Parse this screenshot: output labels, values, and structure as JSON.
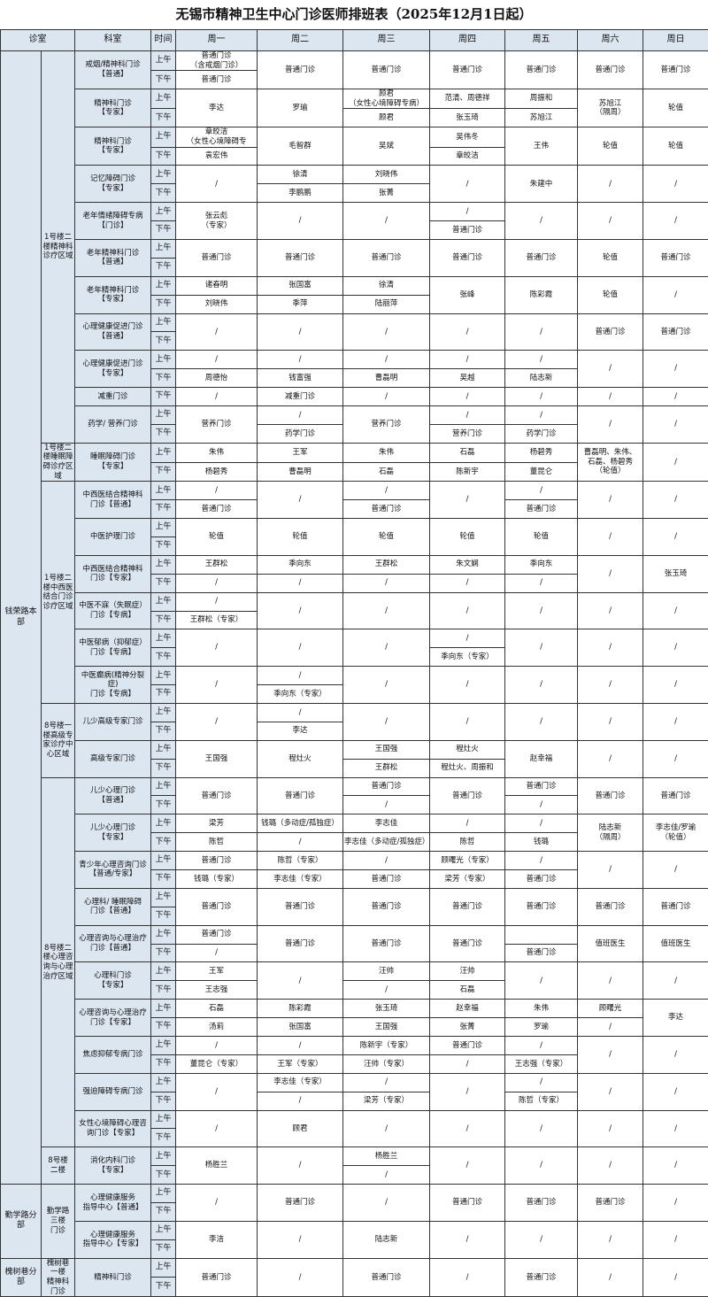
{
  "title": "无锡市精神卫生中心门诊医师排班表（2025年12月1日起）",
  "headers": {
    "clinic": "诊室",
    "dept": "科室",
    "time": "时间",
    "days": [
      "周一",
      "周二",
      "周三",
      "周四",
      "周五",
      "周六",
      "周日"
    ]
  },
  "time_labels": {
    "am": "上午",
    "pm": "下午"
  },
  "colors": {
    "header_bg": "#dce6f1",
    "border": "#333333"
  },
  "groups": [
    {
      "name": "钱荣路本部",
      "areas": [
        {
          "name": "1号楼二楼精神科诊疗区域",
          "depts": [
            {
              "name": "戒烟/精神科门诊\n【普通】",
              "cells": [
                [
                  "普通门诊\n（含戒烟门诊）",
                  "普通门诊"
                ],
                "普通门诊",
                "普通门诊",
                "普通门诊",
                "普通门诊",
                "普通门诊",
                "普通门诊"
              ]
            },
            {
              "name": "精神科门诊\n【专家】",
              "cells": [
                "李达",
                "罗瑜",
                [
                  "顾君\n（女性心境障碍专病）",
                  "顾君"
                ],
                [
                  "范清、周德祥",
                  "张玉琦"
                ],
                [
                  "周振和",
                  "苏旭江"
                ],
                "苏旭江\n（隔周）",
                "轮值"
              ]
            },
            {
              "name": "精神科门诊\n【专家】",
              "cells": [
                [
                  "章皎洁\n（女性心境障碍专",
                  "袁宏伟"
                ],
                "毛智群",
                "吴斌",
                [
                  "吴伟冬",
                  "章皎洁"
                ],
                "王伟",
                "轮值",
                "轮值"
              ]
            },
            {
              "name": "记忆障碍门诊\n【专家】",
              "cells": [
                "/",
                [
                  "徐清",
                  "李鹏鹏"
                ],
                [
                  "刘晓伟",
                  "张菁"
                ],
                "/",
                "朱建中",
                "/",
                "/"
              ]
            },
            {
              "name": "老年情绪障碍专病\n【门诊】",
              "cells": [
                "张云彪\n（专家）",
                "/",
                "/",
                [
                  "/",
                  "普通门诊"
                ],
                "/",
                "/",
                "/"
              ]
            },
            {
              "name": "老年精神科门诊\n【普通】",
              "cells": [
                "普通门诊",
                "普通门诊",
                "普通门诊",
                "普通门诊",
                "普通门诊",
                "轮值",
                "普通门诊"
              ]
            },
            {
              "name": "老年精神科门诊\n【专家】",
              "cells": [
                [
                  "诸春明",
                  "刘晓伟"
                ],
                [
                  "张国富",
                  "季萍"
                ],
                [
                  "徐清",
                  "陆丽萍"
                ],
                "张峰",
                "陈彩霞",
                "轮值",
                "/"
              ]
            },
            {
              "name": "心理健康促进门诊\n【普通】",
              "cells": [
                "/",
                "/",
                "/",
                "/",
                "/",
                "普通门诊",
                "普通门诊"
              ]
            },
            {
              "name": "心理健康促进门诊\n【专家】",
              "cells": [
                [
                  "/",
                  "周德怡"
                ],
                [
                  "/",
                  "钱富强"
                ],
                [
                  "/",
                  "曹磊明"
                ],
                [
                  "/",
                  "吴越"
                ],
                [
                  "/",
                  "陆志新"
                ],
                "/",
                "/"
              ]
            },
            {
              "name": "减重门诊",
              "pm_only": true,
              "cells": [
                "/",
                "减重门诊",
                "/",
                "/",
                "/",
                "/",
                "/"
              ]
            },
            {
              "name": "药学/ 营养门诊",
              "cells": [
                "营养门诊",
                [
                  "/",
                  "药学门诊"
                ],
                "营养门诊",
                [
                  "/",
                  "营养门诊"
                ],
                [
                  "/",
                  "药学门诊"
                ],
                "/",
                "/"
              ]
            }
          ]
        },
        {
          "name": "1号楼二楼睡眠障碍诊疗区域",
          "depts": [
            {
              "name": "睡眠障碍门诊\n【专家】",
              "cells": [
                [
                  "朱伟",
                  "杨碧秀"
                ],
                [
                  "王军",
                  "曹磊明"
                ],
                [
                  "朱伟",
                  "石磊"
                ],
                [
                  "石磊",
                  "陈新宇"
                ],
                [
                  "杨碧秀",
                  "董昆仑"
                ],
                "曹磊明、朱伟、\n石磊、杨碧秀\n（轮值）",
                "/"
              ]
            }
          ]
        },
        {
          "name": "1号楼二楼中西医结合门诊诊疗区域",
          "depts": [
            {
              "name": "中西医结合精神科\n门诊【普通】",
              "cells": [
                [
                  "/",
                  "普通门诊"
                ],
                "/",
                [
                  "/",
                  "普通门诊"
                ],
                "/",
                [
                  "/",
                  "普通门诊"
                ],
                "/",
                "/"
              ]
            },
            {
              "name": "中医护理门诊",
              "cells": [
                "轮值",
                "轮值",
                "轮值",
                "轮值",
                "轮值",
                "/",
                "/"
              ]
            },
            {
              "name": "中西医结合精神科\n门诊【专家】",
              "cells": [
                [
                  "王群松",
                  "/"
                ],
                [
                  "季向东",
                  "/"
                ],
                [
                  "王群松",
                  "/"
                ],
                [
                  "朱文娴",
                  "/"
                ],
                [
                  "季向东",
                  "/"
                ],
                "/",
                "张玉琦"
              ]
            },
            {
              "name": "中医不寐（失眠症）\n门诊【专病】",
              "cells": [
                [
                  "/",
                  "王群松（专家）"
                ],
                "/",
                "/",
                "/",
                "/",
                "/",
                "/"
              ]
            },
            {
              "name": "中医郁病（抑郁症）\n门诊【专病】",
              "cells": [
                "/",
                "/",
                "/",
                [
                  "/",
                  "季向东（专家）"
                ],
                "/",
                "/",
                "/"
              ]
            },
            {
              "name": "中医癫病(精神分裂症)\n门诊【专病】",
              "cells": [
                "/",
                [
                  "/",
                  "季向东（专家）"
                ],
                "/",
                "/",
                "/",
                "/",
                "/"
              ]
            }
          ]
        },
        {
          "name": "8号楼一楼高级专家诊疗中心区域",
          "depts": [
            {
              "name": "儿少高级专家门诊",
              "cells": [
                "/",
                [
                  "/",
                  "李达"
                ],
                "/",
                "/",
                "/",
                "/",
                "/"
              ]
            },
            {
              "name": "高级专家门诊",
              "cells": [
                "王国强",
                "程灶火",
                [
                  "王国强",
                  "王群松"
                ],
                [
                  "程灶火",
                  "程灶火、周振和"
                ],
                "赵幸福",
                "/",
                "/"
              ]
            }
          ]
        },
        {
          "name": "8号楼二楼心理咨询与心理治疗区域",
          "depts": [
            {
              "name": "儿少心理门诊\n【普通】",
              "cells": [
                "普通门诊",
                "普通门诊",
                [
                  "普通门诊",
                  "/"
                ],
                "普通门诊",
                [
                  "普通门诊",
                  "/"
                ],
                "普通门诊",
                "普通门诊"
              ]
            },
            {
              "name": "儿少心理门诊\n【专家】",
              "cells": [
                [
                  "梁芳",
                  "陈哲"
                ],
                [
                  "钱璐（多动症/孤独症）",
                  "/"
                ],
                [
                  "李志佳",
                  "李志佳（多动症/孤独症）"
                ],
                [
                  "/",
                  "陈哲"
                ],
                [
                  "/",
                  "钱璐"
                ],
                "陆志新\n（隔周）",
                "李志佳/罗瑜\n（轮值）"
              ]
            },
            {
              "name": "青少年心理咨询门诊\n【普通/专家】",
              "cells": [
                [
                  "普通门诊",
                  "钱璐（专家）"
                ],
                [
                  "陈哲（专家）",
                  "李志佳（专家）"
                ],
                [
                  "/",
                  "普通门诊"
                ],
                [
                  "顾曙光（专家）",
                  "梁芳（专家）"
                ],
                [
                  "/",
                  "普通门诊"
                ],
                "/",
                "/"
              ]
            },
            {
              "name": "心理科/ 睡眠障碍\n门诊【普通】",
              "cells": [
                "普通门诊",
                "普通门诊",
                "普通门诊",
                "普通门诊",
                "普通门诊",
                "普通门诊",
                "普通门诊"
              ]
            },
            {
              "name": "心理咨询与心理治疗\n门诊【普通】",
              "cells": [
                [
                  "普通门诊",
                  "/"
                ],
                "普通门诊",
                "普通门诊",
                "普通门诊",
                [
                  "",
                  "普通门诊"
                ],
                "值班医生",
                "值班医生"
              ]
            },
            {
              "name": "心理科门诊\n【专家】",
              "cells": [
                [
                  "王军",
                  "王志强"
                ],
                "/",
                [
                  "汪帅",
                  "/"
                ],
                [
                  "汪帅",
                  "石磊"
                ],
                "/",
                "/",
                "/"
              ]
            },
            {
              "name": "心理咨询与心理治疗\n门诊【专家】",
              "cells": [
                [
                  "石磊",
                  "汤莉"
                ],
                [
                  "陈彩霞",
                  "张国富"
                ],
                [
                  "张玉琦",
                  "王国强"
                ],
                [
                  "赵幸福",
                  "张菁"
                ],
                [
                  "朱伟",
                  "罗瑜"
                ],
                [
                  "顾曙光",
                  "/"
                ],
                "李达"
              ]
            },
            {
              "name": "焦虑抑郁专病门诊",
              "cells": [
                [
                  "/",
                  "董昆仑（专家）"
                ],
                [
                  "/",
                  "王军（专家）"
                ],
                [
                  "陈新宇（专家）",
                  "汪帅（专家）"
                ],
                [
                  "普通门诊",
                  "/"
                ],
                [
                  "/",
                  "王志强（专家）"
                ],
                "/",
                "/"
              ]
            },
            {
              "name": "强迫障碍专病门诊",
              "cells": [
                "/",
                [
                  "李志佳（专家）",
                  "/"
                ],
                [
                  "/",
                  "梁芳（专家）"
                ],
                "/",
                [
                  "/",
                  "陈哲（专家）"
                ],
                "/",
                "/"
              ]
            },
            {
              "name": "女性心境障碍心理咨\n询门诊【专家】",
              "cells": [
                "/",
                "顾君",
                "/",
                "/",
                "/",
                "/",
                "/"
              ]
            }
          ]
        },
        {
          "name": "8号楼\n二楼",
          "depts": [
            {
              "name": "消化内科门诊\n【专家】",
              "cells": [
                "杨胜兰",
                "/",
                [
                  "杨胜兰",
                  "/"
                ],
                "/",
                "/",
                "/",
                "/"
              ]
            }
          ]
        }
      ]
    },
    {
      "name": "勤学路分部",
      "areas": [
        {
          "name": "勤学路\n三楼\n门诊",
          "depts": [
            {
              "name": "心理健康服务\n指导中心【普通】",
              "cells": [
                "/",
                "普通门诊",
                "/",
                "普通门诊",
                "普通门诊",
                "普通门诊",
                "/"
              ]
            },
            {
              "name": "心理健康服务\n指导中心【专家】",
              "cells": [
                "李洁",
                "/",
                "陆志新",
                "/",
                "/",
                "/",
                "/"
              ]
            }
          ]
        }
      ]
    },
    {
      "name": "槐树巷分部",
      "areas": [
        {
          "name": "槐树巷\n一楼\n精神科\n门诊",
          "depts": [
            {
              "name": "精神科门诊",
              "cells": [
                "普通门诊",
                "/",
                "普通门诊",
                "/",
                "普通门诊",
                "/",
                "/"
              ]
            }
          ]
        }
      ]
    }
  ]
}
